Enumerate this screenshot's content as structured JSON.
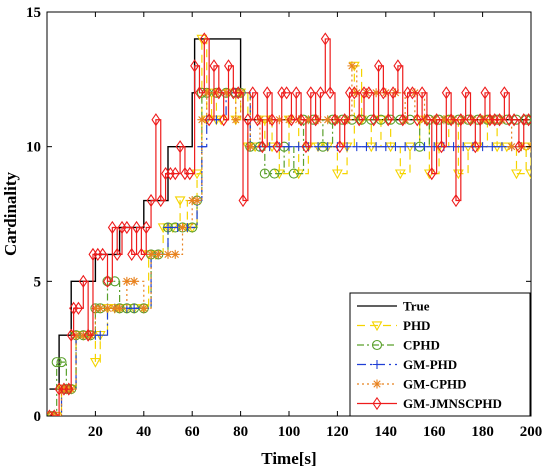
{
  "chart_data": {
    "type": "line",
    "xlabel": "Time[s]",
    "ylabel": "Cardinality",
    "xlim": [
      0,
      200
    ],
    "ylim": [
      0,
      15
    ],
    "xticks": [
      20,
      40,
      60,
      80,
      100,
      120,
      140,
      160,
      180,
      200
    ],
    "yticks": [
      0,
      5,
      10,
      15
    ],
    "legend_position": "bottom-right",
    "grid": false,
    "series": [
      {
        "name": "True",
        "color": "#000000",
        "dash": "",
        "marker": "none",
        "x": [
          1,
          5,
          5,
          10,
          10,
          20,
          20,
          30,
          30,
          40,
          40,
          50,
          50,
          60,
          60,
          61,
          61,
          80,
          80,
          81,
          81,
          200
        ],
        "y": [
          1,
          1,
          3,
          3,
          5,
          5,
          6,
          6,
          7,
          7,
          8,
          8,
          10,
          10,
          12,
          12,
          14,
          14,
          12,
          12,
          11,
          11
        ]
      },
      {
        "name": "PHD",
        "color": "#f5d400",
        "dash": "8,5",
        "marker": "triangle-down",
        "x": [
          2,
          4,
          6,
          8,
          10,
          12,
          15,
          18,
          20,
          22,
          25,
          28,
          30,
          33,
          36,
          40,
          42,
          45,
          48,
          50,
          52,
          55,
          58,
          60,
          62,
          64,
          66,
          68,
          70,
          72,
          75,
          78,
          80,
          83,
          86,
          90,
          93,
          96,
          100,
          104,
          108,
          112,
          116,
          120,
          124,
          127,
          130,
          134,
          138,
          142,
          146,
          150,
          154,
          158,
          162,
          166,
          170,
          174,
          178,
          182,
          186,
          190,
          194,
          198,
          200
        ],
        "y": [
          0,
          0,
          1,
          1,
          1,
          3,
          3,
          3,
          2,
          3,
          4,
          4,
          4,
          4,
          4,
          4,
          6,
          6,
          7,
          7,
          7,
          8,
          7,
          7,
          9,
          14,
          11,
          12,
          11,
          11,
          12,
          11,
          12,
          10,
          10,
          11,
          10,
          9,
          11,
          9,
          10,
          10,
          10,
          9,
          10,
          13,
          11,
          10,
          11,
          10,
          9,
          10,
          11,
          9,
          10,
          11,
          9,
          10,
          10,
          11,
          10,
          10,
          9,
          10,
          9
        ]
      },
      {
        "name": "CPHD",
        "color": "#5aa02c",
        "dash": "7,3,2,3",
        "marker": "circle",
        "x": [
          2,
          4,
          6,
          8,
          10,
          12,
          15,
          18,
          20,
          22,
          25,
          28,
          30,
          33,
          36,
          40,
          43,
          46,
          50,
          53,
          56,
          60,
          62,
          64,
          66,
          70,
          74,
          78,
          80,
          84,
          88,
          90,
          94,
          98,
          102,
          106,
          110,
          114,
          118,
          122,
          126,
          130,
          134,
          138,
          142,
          146,
          150,
          154,
          158,
          162,
          166,
          170,
          174,
          178,
          182,
          186,
          190,
          194,
          198,
          200
        ],
        "y": [
          0,
          2,
          2,
          1,
          1,
          3,
          3,
          3,
          4,
          4,
          5,
          5,
          4,
          4,
          4,
          4,
          6,
          6,
          7,
          7,
          7,
          7,
          8,
          12,
          12,
          12,
          12,
          12,
          12,
          10,
          10,
          9,
          9,
          10,
          9,
          11,
          11,
          10,
          11,
          11,
          11,
          11,
          11,
          11,
          11,
          11,
          11,
          10,
          11,
          11,
          11,
          11,
          11,
          11,
          11,
          11,
          11,
          11,
          11,
          11
        ]
      },
      {
        "name": "GM-PHD",
        "color": "#1f3fd6",
        "dash": "9,4,2,4",
        "marker": "plus",
        "x": [
          2,
          4,
          6,
          8,
          10,
          12,
          15,
          18,
          20,
          22,
          25,
          28,
          30,
          33,
          36,
          40,
          43,
          46,
          50,
          54,
          58,
          62,
          64,
          66,
          70,
          74,
          78,
          80,
          84,
          88,
          92,
          96,
          100,
          104,
          108,
          112,
          116,
          120,
          124,
          128,
          132,
          136,
          140,
          144,
          148,
          152,
          156,
          160,
          164,
          168,
          172,
          176,
          180,
          184,
          188,
          192,
          196,
          200
        ],
        "y": [
          0,
          0,
          1,
          1,
          1,
          3,
          3,
          3,
          3,
          3,
          4,
          4,
          4,
          4,
          4,
          4,
          6,
          6,
          7,
          7,
          7,
          8,
          10,
          11,
          11,
          12,
          12,
          12,
          10,
          10,
          10,
          10,
          10,
          10,
          10,
          10,
          10,
          10,
          10,
          10,
          10,
          10,
          10,
          10,
          10,
          10,
          10,
          10,
          10,
          10,
          10,
          10,
          10,
          10,
          10,
          10,
          10,
          10
        ]
      },
      {
        "name": "GM-CPHD",
        "color": "#e8821e",
        "dash": "2,3",
        "marker": "asterisk",
        "x": [
          2,
          4,
          6,
          8,
          10,
          12,
          15,
          18,
          20,
          22,
          25,
          28,
          30,
          33,
          36,
          40,
          43,
          46,
          50,
          53,
          56,
          60,
          62,
          64,
          66,
          70,
          74,
          78,
          80,
          84,
          88,
          92,
          96,
          100,
          104,
          108,
          112,
          116,
          120,
          124,
          126,
          128,
          132,
          136,
          140,
          144,
          148,
          152,
          156,
          160,
          164,
          168,
          172,
          176,
          180,
          184,
          188,
          192,
          196,
          200
        ],
        "y": [
          0,
          0,
          1,
          1,
          1,
          3,
          3,
          3,
          4,
          4,
          4,
          4,
          4,
          5,
          5,
          4,
          6,
          6,
          6,
          6,
          7,
          8,
          8,
          11,
          12,
          12,
          12,
          11,
          12,
          10,
          11,
          11,
          11,
          11,
          11,
          11,
          11,
          11,
          11,
          11,
          13,
          12,
          12,
          12,
          12,
          12,
          11,
          12,
          11,
          11,
          11,
          11,
          11,
          11,
          11,
          11,
          11,
          10,
          10,
          10
        ]
      },
      {
        "name": "GM-JMNSCPHD",
        "color": "#ee1c1c",
        "dash": "",
        "marker": "diamond",
        "x": [
          1,
          3,
          5,
          7,
          9,
          10,
          11,
          13,
          15,
          17,
          19,
          21,
          23,
          25,
          27,
          29,
          31,
          33,
          35,
          37,
          39,
          41,
          43,
          45,
          47,
          49,
          51,
          53,
          55,
          57,
          59,
          61,
          63,
          65,
          67,
          69,
          71,
          73,
          75,
          77,
          79,
          81,
          83,
          85,
          87,
          89,
          91,
          93,
          95,
          97,
          99,
          101,
          103,
          105,
          107,
          109,
          111,
          113,
          115,
          117,
          119,
          121,
          123,
          125,
          127,
          129,
          131,
          133,
          135,
          137,
          139,
          141,
          143,
          145,
          147,
          149,
          151,
          153,
          155,
          157,
          159,
          161,
          163,
          165,
          167,
          169,
          171,
          173,
          175,
          177,
          179,
          181,
          183,
          185,
          187,
          189,
          191,
          193,
          195,
          197,
          199
        ],
        "y": [
          0,
          0,
          1,
          1,
          1,
          3,
          4,
          4,
          5,
          3,
          6,
          6,
          6,
          5,
          7,
          6,
          7,
          7,
          6,
          7,
          6,
          7,
          8,
          11,
          8,
          9,
          9,
          9,
          10,
          9,
          9,
          13,
          12,
          14,
          11,
          13,
          12,
          11,
          13,
          12,
          12,
          8,
          11,
          12,
          11,
          10,
          12,
          11,
          10,
          12,
          12,
          11,
          12,
          11,
          10,
          12,
          11,
          12,
          14,
          12,
          11,
          10,
          11,
          12,
          12,
          11,
          12,
          12,
          11,
          13,
          12,
          11,
          12,
          13,
          11,
          12,
          12,
          11,
          12,
          11,
          9,
          11,
          10,
          12,
          11,
          8,
          11,
          12,
          11,
          10,
          11,
          12,
          11,
          11,
          11,
          12,
          11,
          11,
          10,
          11,
          11
        ]
      }
    ]
  }
}
